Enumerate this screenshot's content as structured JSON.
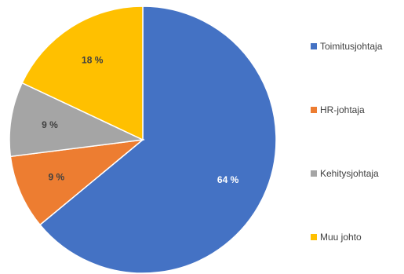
{
  "chart_data": {
    "type": "pie",
    "title": "",
    "categories": [
      "Toimitusjohtaja",
      "HR-johtaja",
      "Kehitysjohtaja",
      "Muu johto"
    ],
    "values": [
      64,
      9,
      9,
      18
    ],
    "data_labels": [
      "64 %",
      "9 %",
      "9 %",
      "18 %"
    ],
    "colors": [
      "#4472C4",
      "#ED7D31",
      "#A5A5A5",
      "#FFC000"
    ],
    "label_colors": [
      "#ffffff",
      "#404040",
      "#404040",
      "#404040"
    ],
    "legend_position": "right",
    "start_angle_deg": 0,
    "direction": "clockwise"
  }
}
